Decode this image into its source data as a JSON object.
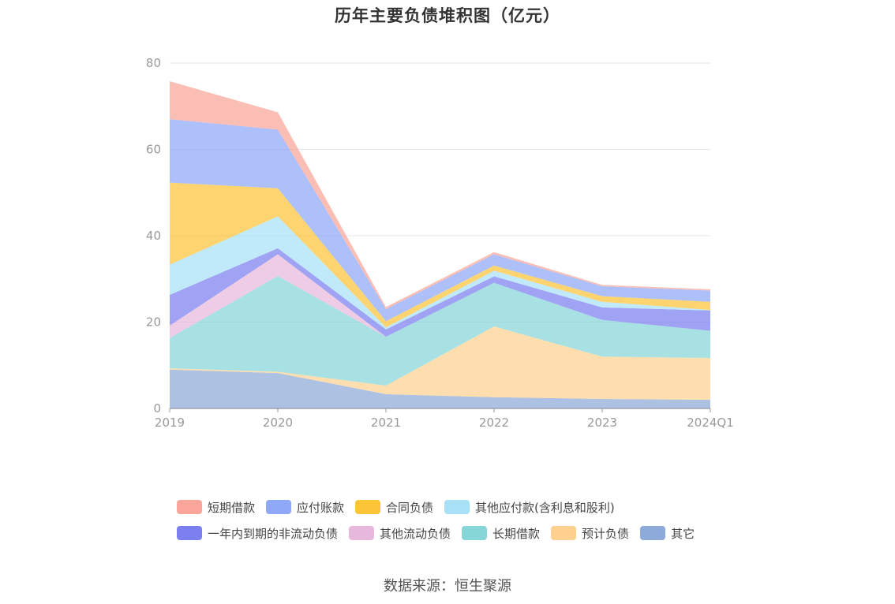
{
  "title": "历年主要负债堆积图（亿元）",
  "source": "数据来源：恒生聚源",
  "chart_data": {
    "type": "area",
    "stacked": true,
    "categories": [
      "2019",
      "2020",
      "2021",
      "2022",
      "2023",
      "2024Q1"
    ],
    "ylim": [
      0,
      80
    ],
    "yticks": [
      0,
      20,
      40,
      60,
      80
    ],
    "grid": true,
    "legend_position": "bottom",
    "series": [
      {
        "name": "其它",
        "color": "#8eaad8",
        "values": [
          9.0,
          8.2,
          3.3,
          2.6,
          2.2,
          2.0
        ]
      },
      {
        "name": "预计负债",
        "color": "#fdd08f",
        "values": [
          0.3,
          0.3,
          2.0,
          16.4,
          9.8,
          9.7
        ]
      },
      {
        "name": "长期借款",
        "color": "#86d6d8",
        "values": [
          7.0,
          22.2,
          11.3,
          10.1,
          8.5,
          6.3
        ]
      },
      {
        "name": "其他流动负债",
        "color": "#e8b8dc",
        "values": [
          2.9,
          5.0,
          0.0,
          0.0,
          0.0,
          0.0
        ]
      },
      {
        "name": "一年内到期的非流动负债",
        "color": "#7b7ff0",
        "values": [
          7.1,
          1.4,
          1.7,
          1.5,
          2.9,
          4.7
        ]
      },
      {
        "name": "其他应付款(含利息和股利)",
        "color": "#a7e0f7",
        "values": [
          7.0,
          7.4,
          0.5,
          1.3,
          1.3,
          0.1
        ]
      },
      {
        "name": "合同负债",
        "color": "#fcc437",
        "values": [
          19.0,
          6.5,
          1.4,
          1.2,
          1.3,
          1.9
        ]
      },
      {
        "name": "应付账款",
        "color": "#8fa8f7",
        "values": [
          14.7,
          13.6,
          2.8,
          2.6,
          2.3,
          2.6
        ]
      },
      {
        "name": "短期借款",
        "color": "#f9a599",
        "values": [
          8.8,
          4.0,
          0.5,
          0.5,
          0.3,
          0.3
        ]
      }
    ]
  },
  "legend_rows": [
    [
      {
        "label": "短期借款",
        "color": "#f9a599"
      },
      {
        "label": "应付账款",
        "color": "#8fa8f7"
      },
      {
        "label": "合同负债",
        "color": "#fcc437"
      },
      {
        "label": "其他应付款(含利息和股利)",
        "color": "#a7e0f7"
      }
    ],
    [
      {
        "label": "一年内到期的非流动负债",
        "color": "#7b7ff0"
      },
      {
        "label": "其他流动负债",
        "color": "#e8b8dc"
      },
      {
        "label": "长期借款",
        "color": "#86d6d8"
      },
      {
        "label": "预计负债",
        "color": "#fdd08f"
      },
      {
        "label": "其它",
        "color": "#8eaad8"
      }
    ]
  ]
}
